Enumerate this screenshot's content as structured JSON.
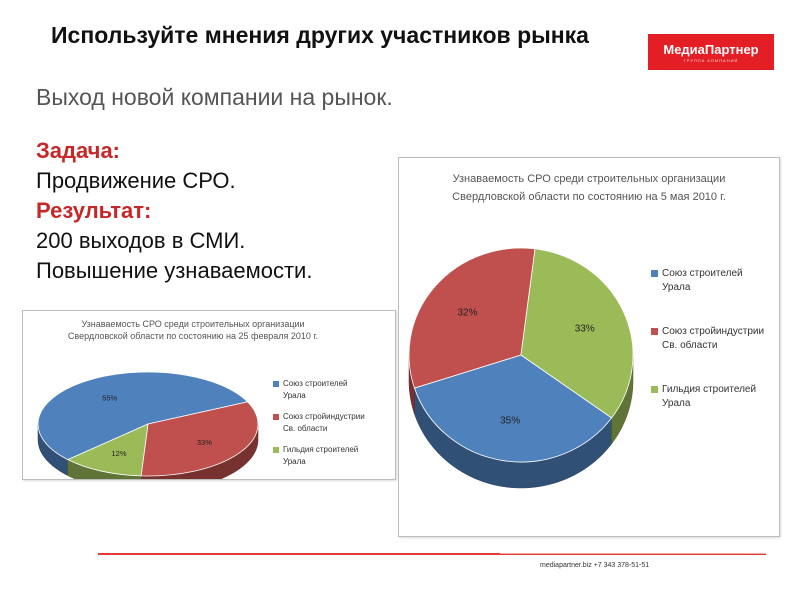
{
  "header": {
    "title": "Используйте мнения других участников рынка",
    "subtitle": "Выход новой компании на рынок.",
    "logo_text": "МедиаПартнер",
    "logo_subtext": "ГРУППА КОМПАНИЙ"
  },
  "content": {
    "task_label": "Задача:",
    "task_text": "Продвижение СРО.",
    "result_label": "Результат:",
    "result_line1": "200 выходов в СМИ.",
    "result_line2": "Повышение узнаваемости."
  },
  "footer": {
    "contact": "mediapartner.biz   +7 343 378-51-51"
  },
  "colors": {
    "accent": "#e31e24",
    "blue": "#4f81bd",
    "red": "#c0504d",
    "green": "#9bbb59"
  },
  "chart_data": [
    {
      "type": "pie",
      "title_line1": "Узнаваемость СРО среди строительных организации",
      "title_line2": "Свердловской области  по состоянию на 25 февраля 2010 г.",
      "categories": [
        "Союз строителей Урала",
        "Союз стройиндустрии Св. области",
        "Гильдия строителей Урала"
      ],
      "legend": [
        [
          "Союз строителей",
          "Урала"
        ],
        [
          "Союз стройиндустрии",
          "Св. области"
        ],
        [
          "Гильдия строителей",
          "Урала"
        ]
      ],
      "values": [
        55,
        33,
        12
      ],
      "labels": [
        "55%",
        "33%",
        "12%"
      ],
      "legend_position": "right"
    },
    {
      "type": "pie",
      "title_line1": "Узнаваемость СРО среди строительных организации",
      "title_line2": "Свердловской области  по состоянию на 5 мая 2010 г.",
      "categories": [
        "Союз строителей Урала",
        "Союз стройиндустрии Св. области",
        "Гильдия строителей Урала"
      ],
      "legend": [
        [
          "Союз строителей",
          "Урала"
        ],
        [
          "Союз стройиндустрии",
          "Св. области"
        ],
        [
          "Гильдия строителей",
          "Урала"
        ]
      ],
      "values": [
        35,
        32,
        33
      ],
      "labels": [
        "35%",
        "32%",
        "33%"
      ],
      "legend_position": "right"
    }
  ]
}
